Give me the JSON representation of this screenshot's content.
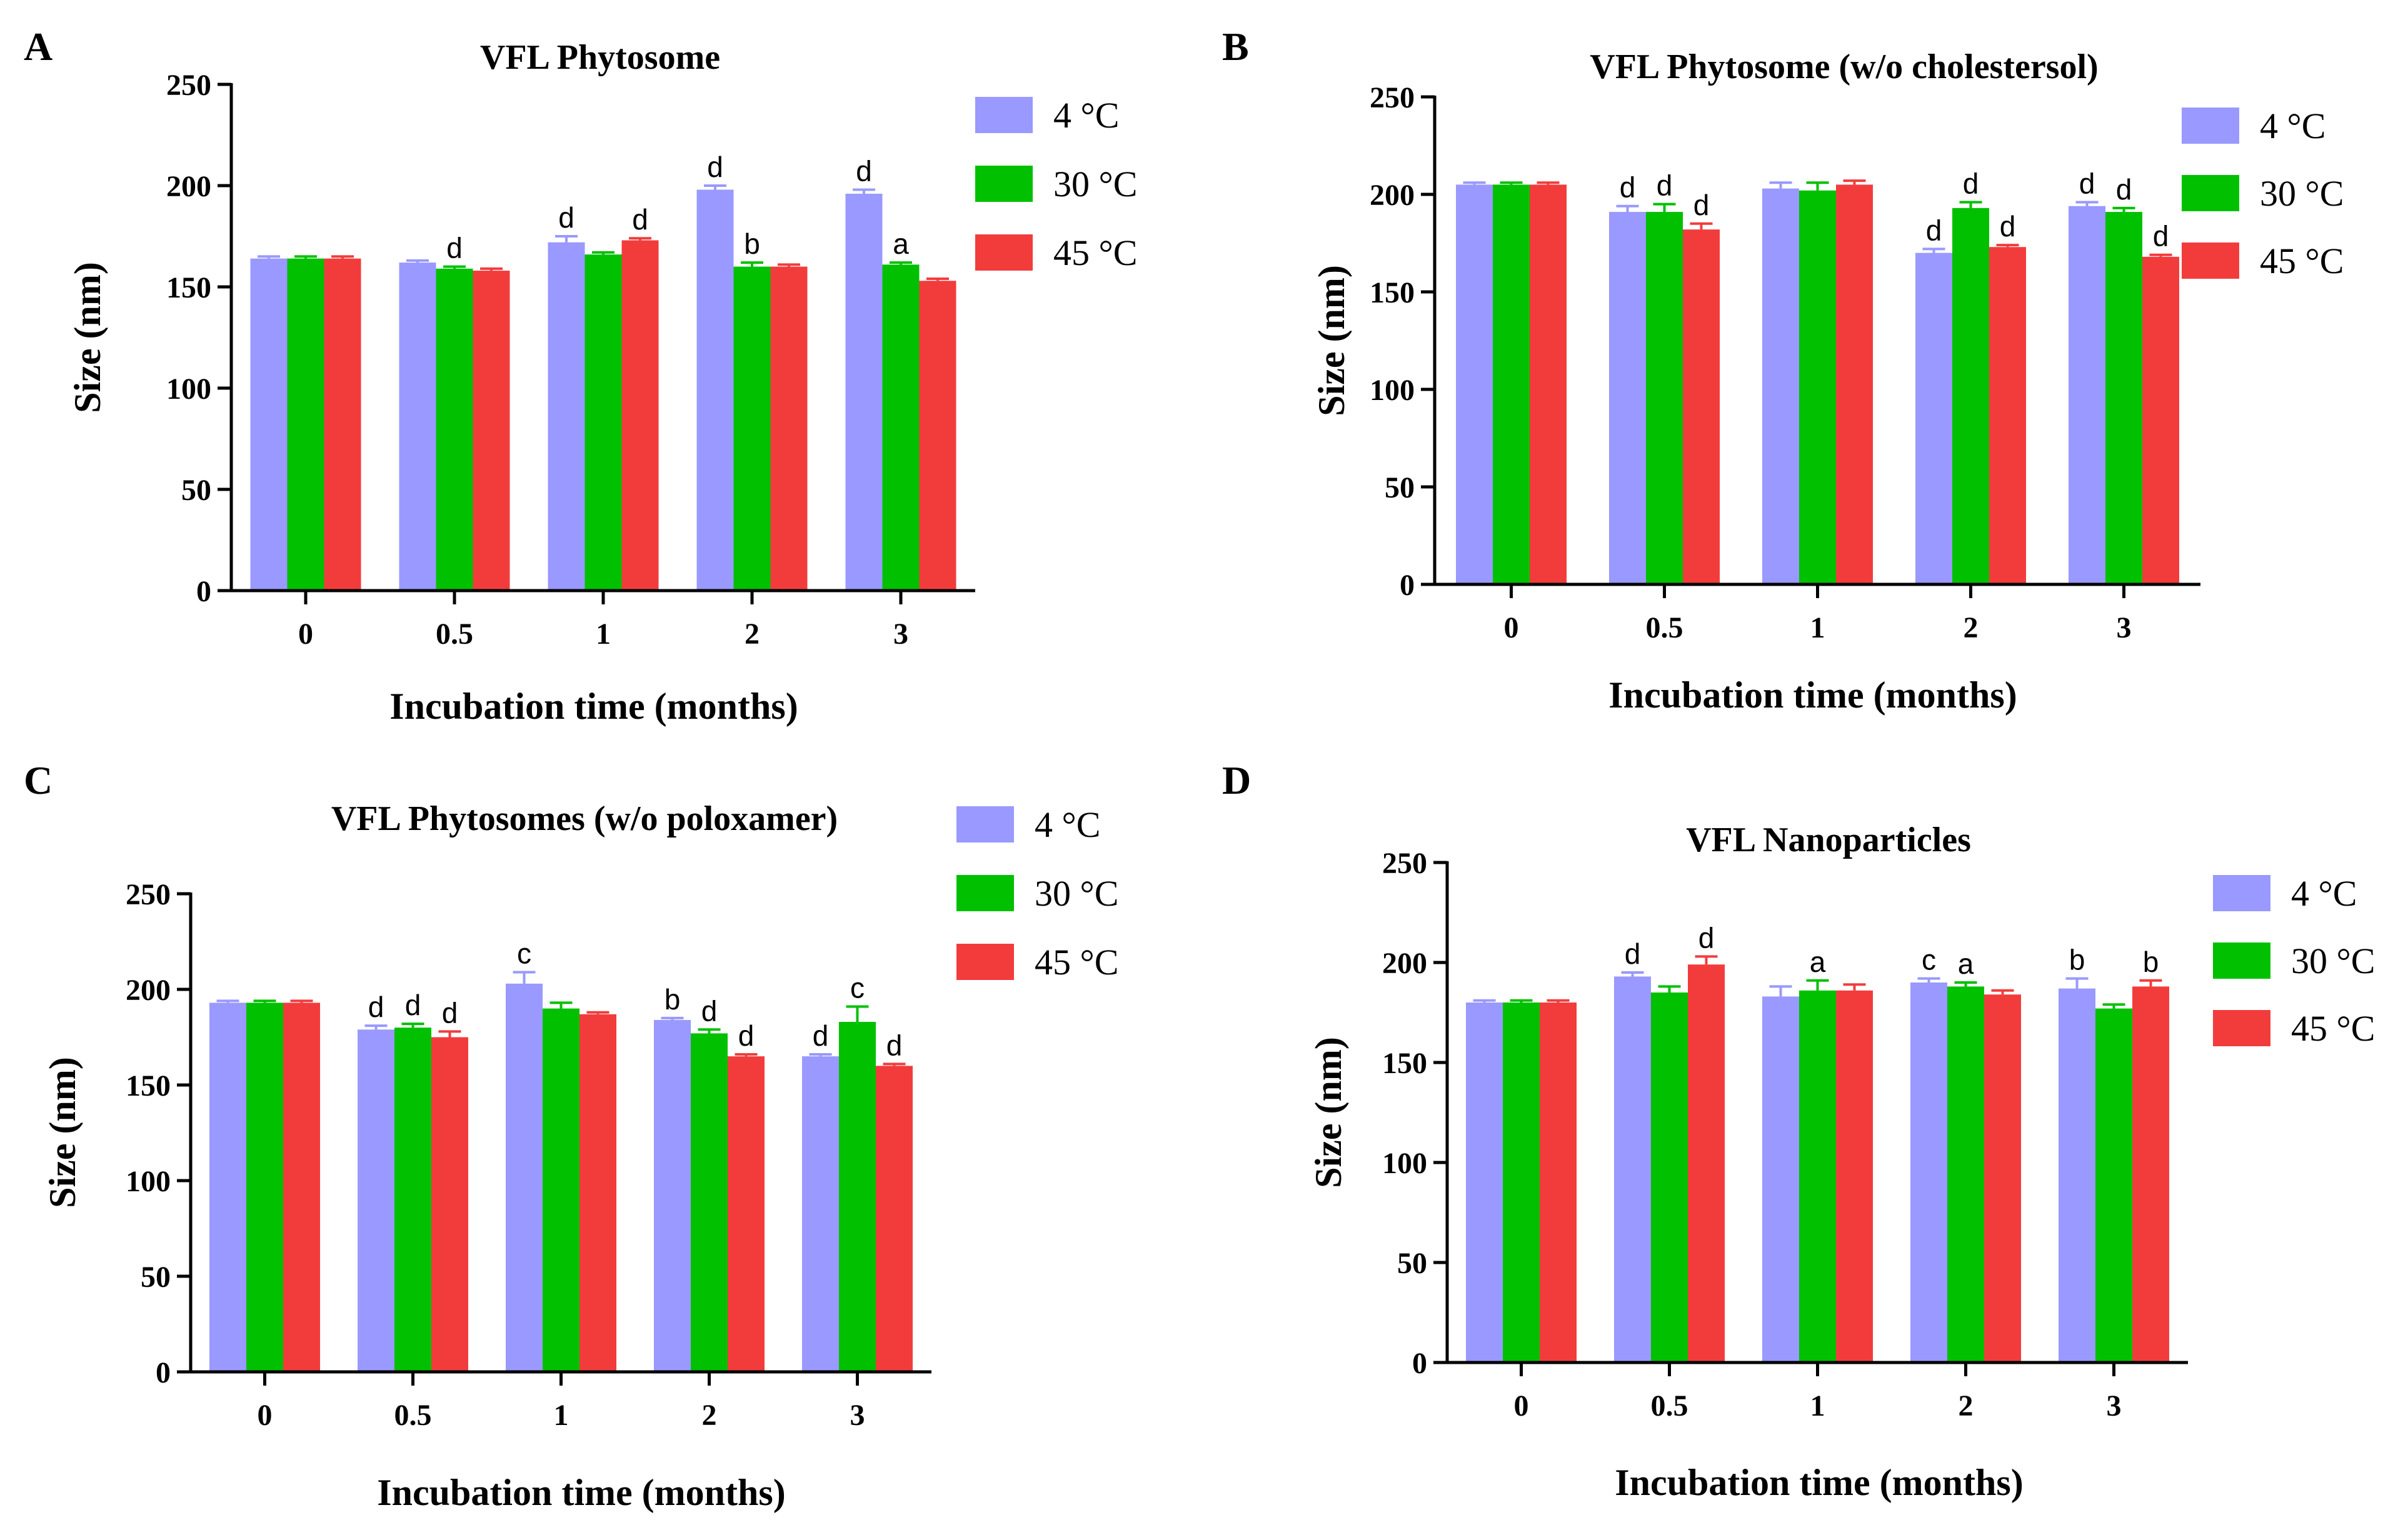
{
  "series_colors": {
    "4 °C": "#9999ff",
    "30 °C": "#00c000",
    "45 °C": "#f23c3c"
  },
  "chart_data": [
    {
      "panel": "A",
      "type": "bar",
      "title": "VFL Phytosome",
      "xlabel": "Incubation time (months)",
      "ylabel": "Size (nm)",
      "ylim": [
        0,
        250
      ],
      "yticks": [
        "0",
        "50",
        "100",
        "150",
        "200",
        "250"
      ],
      "categories": [
        "0",
        "0.5",
        "1",
        "2",
        "3"
      ],
      "legend": [
        "4 °C",
        "30 °C",
        "45 °C"
      ],
      "legend_position": "top-right",
      "series": [
        {
          "name": "4 °C",
          "values": [
            164,
            162,
            172,
            198,
            196
          ],
          "errors": [
            1,
            1,
            3,
            2,
            2
          ],
          "labels": [
            "",
            "",
            "d",
            "d",
            "d"
          ]
        },
        {
          "name": "30 °C",
          "values": [
            164,
            159,
            166,
            160,
            161
          ],
          "errors": [
            1,
            1,
            1,
            2,
            1
          ],
          "labels": [
            "",
            "d",
            "",
            "b",
            "a"
          ]
        },
        {
          "name": "45 °C",
          "values": [
            164,
            158,
            173,
            160,
            153
          ],
          "errors": [
            1,
            1,
            1,
            1,
            1
          ],
          "labels": [
            "",
            "",
            "d",
            "",
            ""
          ]
        }
      ]
    },
    {
      "panel": "B",
      "type": "bar",
      "title": "VFL Phytosome (w/o cholestersol)",
      "xlabel": "Incubation time (months)",
      "ylabel": "Size (nm)",
      "ylim": [
        0,
        250
      ],
      "yticks": [
        "0",
        "50",
        "100",
        "150",
        "200",
        "250"
      ],
      "categories": [
        "0",
        "0.5",
        "1",
        "2",
        "3"
      ],
      "legend": [
        "4 °C",
        "30 °C",
        "45 °C"
      ],
      "legend_position": "top-right",
      "series": [
        {
          "name": "4 °C",
          "values": [
            205,
            191,
            203,
            170,
            194
          ],
          "errors": [
            1,
            3,
            3,
            2,
            2
          ],
          "labels": [
            "",
            "d",
            "",
            "d",
            "d"
          ]
        },
        {
          "name": "30 °C",
          "values": [
            205,
            191,
            202,
            193,
            191
          ],
          "errors": [
            1,
            4,
            4,
            3,
            2
          ],
          "labels": [
            "",
            "d",
            "",
            "d",
            "d"
          ]
        },
        {
          "name": "45 °C",
          "values": [
            205,
            182,
            205,
            173,
            168
          ],
          "errors": [
            1,
            3,
            2,
            1,
            1
          ],
          "labels": [
            "",
            "d",
            "",
            "d",
            "d"
          ]
        }
      ]
    },
    {
      "panel": "C",
      "type": "bar",
      "title": "VFL Phytosomes (w/o poloxamer)",
      "xlabel": "Incubation time (months)",
      "ylabel": "Size (nm)",
      "ylim": [
        0,
        250
      ],
      "yticks": [
        "0",
        "50",
        "100",
        "150",
        "200",
        "250"
      ],
      "categories": [
        "0",
        "0.5",
        "1",
        "2",
        "3"
      ],
      "legend": [
        "4 °C",
        "30 °C",
        "45 °C"
      ],
      "legend_position": "top-right",
      "series": [
        {
          "name": "4 °C",
          "values": [
            193,
            179,
            203,
            184,
            165
          ],
          "errors": [
            1,
            2,
            6,
            1,
            1
          ],
          "labels": [
            "",
            "d",
            "c",
            "b",
            "d"
          ]
        },
        {
          "name": "30 °C",
          "values": [
            193,
            180,
            190,
            177,
            183
          ],
          "errors": [
            1,
            2,
            3,
            2,
            8
          ],
          "labels": [
            "",
            "d",
            "",
            "d",
            "c"
          ]
        },
        {
          "name": "45 °C",
          "values": [
            193,
            175,
            187,
            165,
            160
          ],
          "errors": [
            1,
            3,
            1,
            1,
            1
          ],
          "labels": [
            "",
            "d",
            "",
            "d",
            "d"
          ]
        }
      ]
    },
    {
      "panel": "D",
      "type": "bar",
      "title": "VFL Nanoparticles",
      "xlabel": "Incubation time (months)",
      "ylabel": "Size (nm)",
      "ylim": [
        0,
        250
      ],
      "yticks": [
        "0",
        "50",
        "100",
        "150",
        "200",
        "250"
      ],
      "categories": [
        "0",
        "0.5",
        "1",
        "2",
        "3"
      ],
      "legend": [
        "4 °C",
        "30 °C",
        "45 °C"
      ],
      "legend_position": "top-right",
      "series": [
        {
          "name": "4 °C",
          "values": [
            180,
            193,
            183,
            190,
            187
          ],
          "errors": [
            1,
            2,
            5,
            2,
            5
          ],
          "labels": [
            "",
            "d",
            "",
            "c",
            "b"
          ]
        },
        {
          "name": "30 °C",
          "values": [
            180,
            185,
            186,
            188,
            177
          ],
          "errors": [
            1,
            3,
            5,
            2,
            2
          ],
          "labels": [
            "",
            "",
            "a",
            "a",
            ""
          ]
        },
        {
          "name": "45 °C",
          "values": [
            180,
            199,
            186,
            184,
            188
          ],
          "errors": [
            1,
            4,
            3,
            2,
            3
          ],
          "labels": [
            "",
            "d",
            "",
            "",
            "b"
          ]
        }
      ]
    }
  ]
}
